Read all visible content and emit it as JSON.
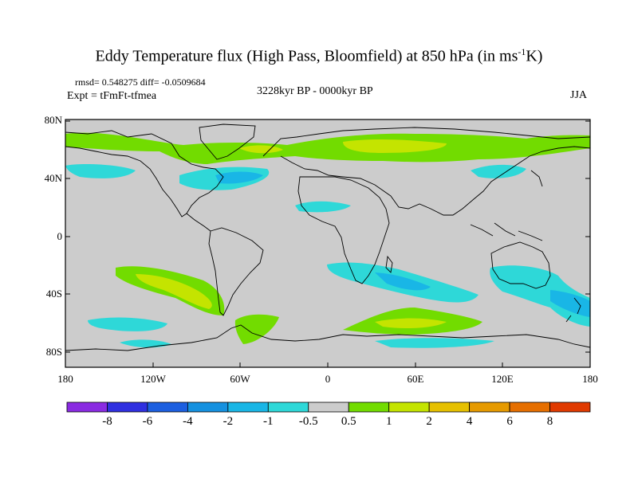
{
  "title": {
    "main": "Eddy Temperature flux (High Pass, Bloomfield) at 850 hPa (in ms",
    "sup": "-1",
    "tail": "K)"
  },
  "stats": "rmsd= 0.548275 diff= -0.0509684",
  "experiment": "Expt = tFmFt-tfmea",
  "period": "3228kyr BP - 0000kyr BP",
  "season": "JJA",
  "lat_labels": [
    "80N",
    "40N",
    "0",
    "40S",
    "80S"
  ],
  "lon_labels": [
    "180",
    "120W",
    "60W",
    "0",
    "60E",
    "120E",
    "180"
  ],
  "colorbar": {
    "labels": [
      "-8",
      "-6",
      "-4",
      "-2",
      "-1",
      "-0.5",
      "0.5",
      "1",
      "2",
      "4",
      "6",
      "8"
    ],
    "colors": [
      "#8a2be2",
      "#2f2fe0",
      "#1c5fe0",
      "#1591e0",
      "#19b6e6",
      "#2ed8d8",
      "#cccccc",
      "#72dc00",
      "#c4e400",
      "#e6c000",
      "#e69a00",
      "#e66f00",
      "#e03a00"
    ]
  },
  "map": {
    "background": "#cccccc",
    "regions": [
      {
        "name": "arctic-positive-band",
        "color": "#72dc00"
      },
      {
        "name": "siberia-positive-core",
        "color": "#c4e400"
      },
      {
        "name": "north-atlantic-negative",
        "color": "#2ed8d8"
      },
      {
        "name": "north-pacific-negative",
        "color": "#2ed8d8"
      },
      {
        "name": "south-pacific-positive",
        "color": "#72dc00"
      },
      {
        "name": "south-pacific-positive-core",
        "color": "#c4e400"
      },
      {
        "name": "south-atlantic-negative",
        "color": "#2ed8d8"
      },
      {
        "name": "southern-ocean-positive",
        "color": "#72dc00"
      },
      {
        "name": "southern-ocean-positive-core",
        "color": "#c4e400"
      },
      {
        "name": "australia-negative",
        "color": "#19b6e6"
      }
    ]
  }
}
